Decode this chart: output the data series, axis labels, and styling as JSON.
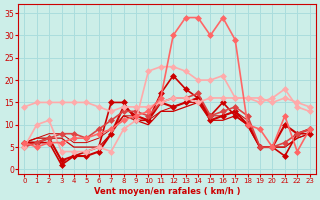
{
  "title": "",
  "xlabel": "Vent moyen/en rafales ( km/h )",
  "ylabel": "",
  "bg_color": "#cceee8",
  "grid_color": "#aadddd",
  "text_color": "#cc0000",
  "x_ticks": [
    0,
    1,
    2,
    3,
    4,
    5,
    6,
    7,
    8,
    9,
    10,
    11,
    12,
    13,
    14,
    15,
    16,
    17,
    18,
    19,
    20,
    21,
    22,
    23
  ],
  "y_ticks": [
    0,
    5,
    10,
    15,
    20,
    25,
    30,
    35
  ],
  "ylim": [
    -1,
    37
  ],
  "xlim": [
    -0.5,
    23.5
  ],
  "lines": [
    {
      "x": [
        0,
        1,
        2,
        3,
        4,
        5,
        6,
        7,
        8,
        9,
        10,
        11,
        12,
        13,
        14,
        15,
        16,
        17,
        18,
        19,
        20,
        21,
        22,
        23
      ],
      "y": [
        6,
        6,
        6,
        1,
        3,
        4,
        5,
        15,
        15,
        11,
        11,
        17,
        21,
        18,
        16,
        12,
        15,
        12,
        10,
        5,
        5,
        3,
        8,
        8
      ],
      "color": "#cc0000",
      "lw": 1.2,
      "marker": "D",
      "ms": 3
    },
    {
      "x": [
        0,
        1,
        2,
        3,
        4,
        5,
        6,
        7,
        8,
        9,
        10,
        11,
        12,
        13,
        14,
        15,
        16,
        17,
        18,
        19,
        20,
        21,
        22,
        23
      ],
      "y": [
        6,
        6,
        7,
        2,
        3,
        3,
        4,
        8,
        14,
        12,
        11,
        15,
        14,
        15,
        16,
        11,
        12,
        13,
        10,
        5,
        5,
        10,
        8,
        9
      ],
      "color": "#cc0000",
      "lw": 1.5,
      "marker": "D",
      "ms": 3
    },
    {
      "x": [
        0,
        1,
        2,
        3,
        4,
        5,
        6,
        7,
        8,
        9,
        10,
        11,
        12,
        13,
        14,
        15,
        16,
        17,
        18,
        19,
        20,
        21,
        22,
        23
      ],
      "y": [
        6,
        7,
        7,
        7,
        5,
        5,
        5,
        8,
        12,
        11,
        10,
        13,
        13,
        14,
        15,
        11,
        11,
        12,
        10,
        5,
        5,
        5,
        7,
        8
      ],
      "color": "#cc0000",
      "lw": 0.9,
      "marker": null,
      "ms": 0
    },
    {
      "x": [
        0,
        1,
        2,
        3,
        4,
        5,
        6,
        7,
        8,
        9,
        10,
        11,
        12,
        13,
        14,
        15,
        16,
        17,
        18,
        19,
        20,
        21,
        22,
        23
      ],
      "y": [
        6,
        7,
        8,
        8,
        6,
        6,
        7,
        9,
        12,
        12,
        11,
        13,
        14,
        15,
        15,
        12,
        12,
        13,
        11,
        5,
        5,
        5,
        7,
        8
      ],
      "color": "#cc0000",
      "lw": 0.7,
      "marker": null,
      "ms": 0
    },
    {
      "x": [
        0,
        1,
        2,
        3,
        4,
        5,
        6,
        7,
        8,
        9,
        10,
        11,
        12,
        13,
        14,
        15,
        16,
        17,
        18,
        19,
        20,
        21,
        22,
        23
      ],
      "y": [
        5,
        6,
        7,
        8,
        8,
        7,
        9,
        11,
        13,
        13,
        12,
        15,
        16,
        16,
        17,
        12,
        13,
        14,
        12,
        5,
        5,
        6,
        8,
        9
      ],
      "color": "#dd4444",
      "lw": 1.2,
      "marker": "D",
      "ms": 3
    },
    {
      "x": [
        0,
        1,
        2,
        3,
        4,
        5,
        6,
        7,
        8,
        9,
        10,
        11,
        12,
        13,
        14,
        15,
        16,
        17,
        18,
        19,
        20,
        21,
        22,
        23
      ],
      "y": [
        5,
        10,
        11,
        4,
        4,
        4,
        5,
        4,
        9,
        11,
        22,
        23,
        23,
        22,
        20,
        20,
        21,
        16,
        16,
        15,
        16,
        18,
        14,
        13
      ],
      "color": "#ffaaaa",
      "lw": 1.2,
      "marker": "D",
      "ms": 3
    },
    {
      "x": [
        0,
        1,
        2,
        3,
        4,
        5,
        6,
        7,
        8,
        9,
        10,
        11,
        12,
        13,
        14,
        15,
        16,
        17,
        18,
        19,
        20,
        21,
        22,
        23
      ],
      "y": [
        14,
        15,
        15,
        15,
        15,
        15,
        14,
        13,
        14,
        14,
        14,
        15,
        16,
        16,
        15,
        16,
        16,
        16,
        16,
        16,
        15,
        16,
        15,
        14
      ],
      "color": "#ffaaaa",
      "lw": 1.2,
      "marker": "D",
      "ms": 3
    },
    {
      "x": [
        0,
        1,
        2,
        3,
        4,
        5,
        6,
        7,
        8,
        9,
        10,
        11,
        12,
        13,
        14,
        15,
        16,
        17,
        18,
        19,
        20,
        21,
        22,
        23
      ],
      "y": [
        6,
        5,
        6,
        6,
        7,
        7,
        8,
        9,
        11,
        12,
        13,
        16,
        30,
        34,
        34,
        30,
        34,
        29,
        10,
        9,
        5,
        12,
        4,
        9
      ],
      "color": "#ff6666",
      "lw": 1.2,
      "marker": "D",
      "ms": 3
    }
  ]
}
